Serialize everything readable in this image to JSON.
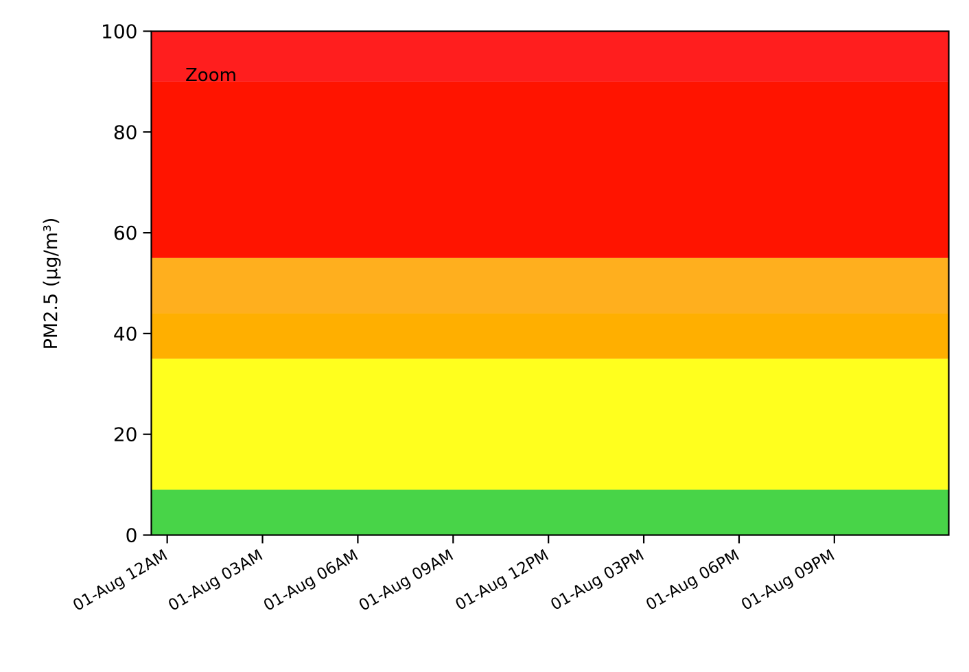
{
  "chart_data": {
    "type": "area",
    "title": "",
    "xlabel": "",
    "ylabel": "PM2.5 (µg/m³)",
    "ylim": [
      0,
      100
    ],
    "xlim_hours": [
      -0.5,
      24.6
    ],
    "y_ticks": [
      0,
      20,
      40,
      60,
      80,
      100
    ],
    "x_ticks": [
      {
        "hour": 0,
        "label": "01-Aug 12AM"
      },
      {
        "hour": 3,
        "label": "01-Aug 03AM"
      },
      {
        "hour": 6,
        "label": "01-Aug 06AM"
      },
      {
        "hour": 9,
        "label": "01-Aug 09AM"
      },
      {
        "hour": 12,
        "label": "01-Aug 12PM"
      },
      {
        "hour": 15,
        "label": "01-Aug 03PM"
      },
      {
        "hour": 18,
        "label": "01-Aug 06PM"
      },
      {
        "hour": 21,
        "label": "01-Aug 09PM"
      }
    ],
    "bands": [
      {
        "y0": 0,
        "y1": 9,
        "color": "#48d448"
      },
      {
        "y0": 9,
        "y1": 35,
        "color": "#ffff1e"
      },
      {
        "y0": 35,
        "y1": 44,
        "color": "#ffaf00"
      },
      {
        "y0": 44,
        "y1": 55,
        "color": "#ffaf1e"
      },
      {
        "y0": 55,
        "y1": 90,
        "color": "#ff1400"
      },
      {
        "y0": 90,
        "y1": 100,
        "color": "#ff1e1e"
      }
    ],
    "annotations": [
      {
        "text": "Zoom",
        "position": "top-left"
      }
    ],
    "grid": false,
    "legend": "none"
  }
}
